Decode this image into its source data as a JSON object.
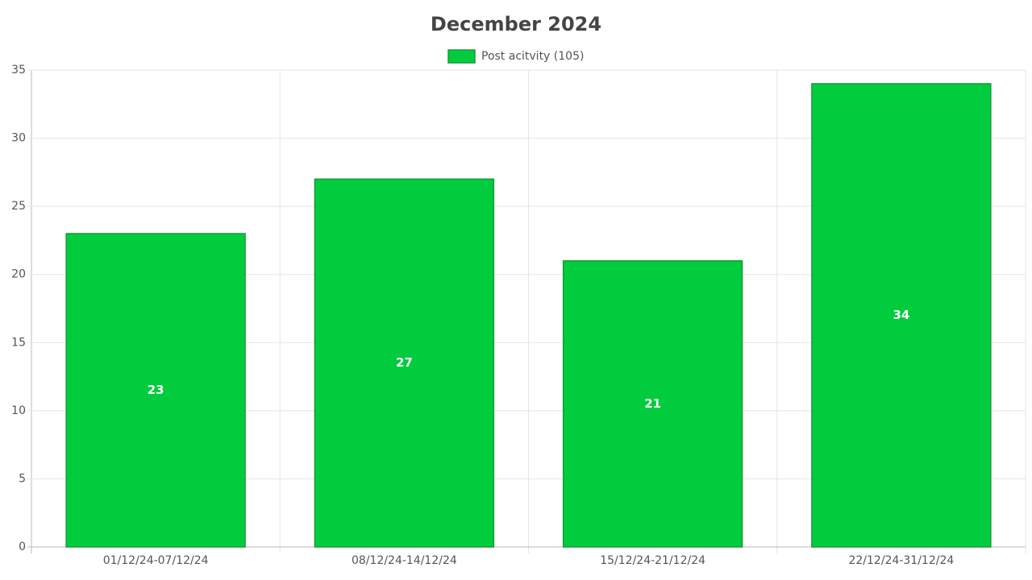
{
  "chart_data": {
    "type": "bar",
    "title": "December 2024",
    "categories": [
      "01/12/24-07/12/24",
      "08/12/24-14/12/24",
      "15/12/24-21/12/24",
      "22/12/24-31/12/24"
    ],
    "series": [
      {
        "name": "Post acitvity (105)",
        "color": "#00cc3d",
        "values": [
          23,
          27,
          21,
          34
        ]
      }
    ],
    "ylim": [
      0,
      35
    ],
    "yticks": [
      0,
      5,
      10,
      15,
      20,
      25,
      30,
      35
    ],
    "grid": true,
    "legend": "top"
  }
}
